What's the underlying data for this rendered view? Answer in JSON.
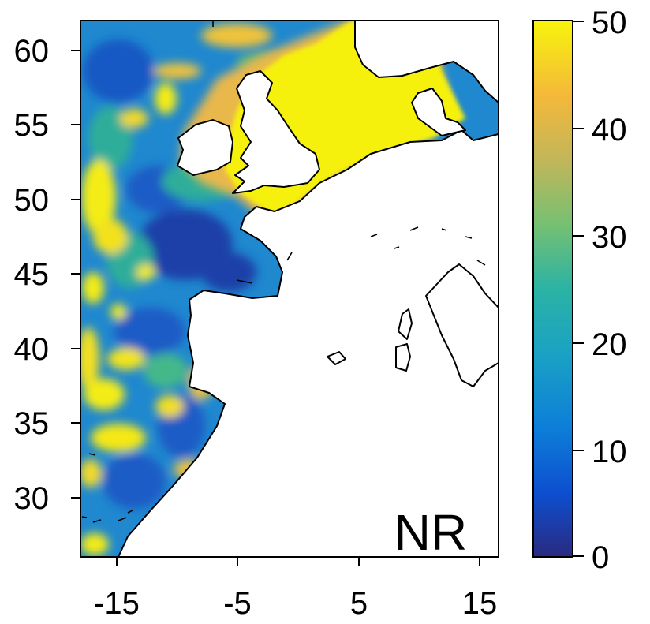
{
  "map": {
    "panel_label": "NR",
    "x_axis": {
      "ticks": [
        "-15",
        "-5",
        "5",
        "15"
      ]
    },
    "y_axis": {
      "ticks": [
        "60",
        "55",
        "50",
        "45",
        "40",
        "35",
        "30"
      ]
    },
    "colorbar": {
      "ticks": [
        "50",
        "40",
        "30",
        "20",
        "10",
        "0"
      ],
      "range": [
        0,
        50
      ],
      "colors": [
        "#2a2a80",
        "#0d63d8",
        "#1298c8",
        "#18b0aa",
        "#62bf7e",
        "#b9b65a",
        "#f0b63a",
        "#f6ee10"
      ]
    },
    "colors": {
      "ocean_mid": "#1f88cf",
      "ocean_deep": "#1554c0",
      "shelf": "#f6f00c",
      "shelf_edge": "#e9b84b",
      "land": "#ffffff",
      "coastline": "#000000"
    }
  }
}
